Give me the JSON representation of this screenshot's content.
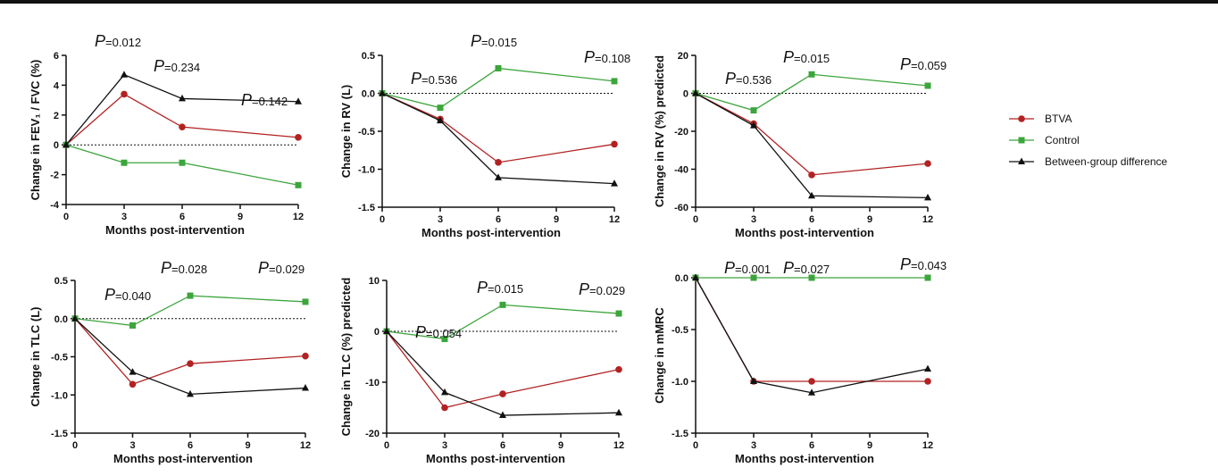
{
  "colors": {
    "BTVA": "#b22222",
    "Control": "#3ca53c",
    "Between-group difference": "#111111"
  },
  "legend": [
    {
      "name": "BTVA",
      "marker": "circle"
    },
    {
      "name": "Control",
      "marker": "square"
    },
    {
      "name": "Between-group difference",
      "marker": "triangle"
    }
  ],
  "chart_data": [
    {
      "type": "line",
      "ylabel": "Change in FEV₁ / FVC (%)",
      "xlabel": "Months post-intervention",
      "x": [
        0,
        3,
        6,
        12
      ],
      "xticks": [
        0,
        3,
        6,
        9,
        12
      ],
      "ylim": [
        -4,
        6
      ],
      "yticks": [
        -4,
        -2,
        0,
        2,
        4,
        6
      ],
      "series": [
        {
          "name": "BTVA",
          "values": [
            0,
            3.4,
            1.2,
            0.5
          ]
        },
        {
          "name": "Control",
          "values": [
            0,
            -1.2,
            -1.2,
            -2.7
          ]
        },
        {
          "name": "Between-group difference",
          "values": [
            0,
            4.7,
            3.1,
            2.9
          ]
        }
      ],
      "pvalues": [
        {
          "label": "P",
          "value": "=0.012"
        },
        {
          "label": "P",
          "value": "=0.234"
        },
        {
          "label": "P",
          "value": "=0.142"
        }
      ]
    },
    {
      "type": "line",
      "ylabel": "Change in RV (L)",
      "xlabel": "Months post-intervention",
      "x": [
        0,
        3,
        6,
        12
      ],
      "xticks": [
        0,
        3,
        6,
        9,
        12
      ],
      "ylim": [
        -1.5,
        0.5
      ],
      "yticks": [
        -1.5,
        -1.0,
        -0.5,
        0.0,
        0.5
      ],
      "series": [
        {
          "name": "BTVA",
          "values": [
            0,
            -0.34,
            -0.91,
            -0.67
          ]
        },
        {
          "name": "Control",
          "values": [
            0,
            -0.19,
            0.33,
            0.16
          ]
        },
        {
          "name": "Between-group difference",
          "values": [
            0,
            -0.36,
            -1.11,
            -1.19
          ]
        }
      ],
      "pvalues": [
        {
          "label": "P",
          "value": "=0.536"
        },
        {
          "label": "P",
          "value": "=0.015"
        },
        {
          "label": "P",
          "value": "=0.108"
        }
      ]
    },
    {
      "type": "line",
      "ylabel": "Change in RV (%) predicted",
      "xlabel": "Months post-intervention",
      "x": [
        0,
        3,
        6,
        12
      ],
      "xticks": [
        0,
        3,
        6,
        9,
        12
      ],
      "ylim": [
        -60,
        20
      ],
      "yticks": [
        -60,
        -40,
        -20,
        0,
        20
      ],
      "series": [
        {
          "name": "BTVA",
          "values": [
            0,
            -16,
            -43,
            -37
          ]
        },
        {
          "name": "Control",
          "values": [
            0,
            -9,
            10,
            4
          ]
        },
        {
          "name": "Between-group difference",
          "values": [
            0,
            -17,
            -54,
            -55
          ]
        }
      ],
      "pvalues": [
        {
          "label": "P",
          "value": "=0.536"
        },
        {
          "label": "P",
          "value": "=0.015"
        },
        {
          "label": "P",
          "value": "=0.059"
        }
      ]
    },
    {
      "type": "line",
      "ylabel": "Change in TLC (L)",
      "xlabel": "Months post-intervention",
      "x": [
        0,
        3,
        6,
        12
      ],
      "xticks": [
        0,
        3,
        6,
        9,
        12
      ],
      "ylim": [
        -1.5,
        0.5
      ],
      "yticks": [
        -1.5,
        -1.0,
        -0.5,
        0.0,
        0.5
      ],
      "series": [
        {
          "name": "BTVA",
          "values": [
            0,
            -0.86,
            -0.59,
            -0.49
          ]
        },
        {
          "name": "Control",
          "values": [
            0,
            -0.09,
            0.3,
            0.22
          ]
        },
        {
          "name": "Between-group difference",
          "values": [
            0,
            -0.7,
            -0.99,
            -0.91
          ]
        }
      ],
      "pvalues": [
        {
          "label": "P",
          "value": "=0.040"
        },
        {
          "label": "P",
          "value": "=0.028"
        },
        {
          "label": "P",
          "value": "=0.029"
        }
      ]
    },
    {
      "type": "line",
      "ylabel": "Change in TLC (%) predicted",
      "xlabel": "Months post-intervention",
      "x": [
        0,
        3,
        6,
        12
      ],
      "xticks": [
        0,
        3,
        6,
        9,
        12
      ],
      "ylim": [
        -20,
        10
      ],
      "yticks": [
        -20,
        -10,
        0,
        10
      ],
      "series": [
        {
          "name": "BTVA",
          "values": [
            0,
            -15,
            -12.3,
            -7.5
          ]
        },
        {
          "name": "Control",
          "values": [
            0,
            -1.5,
            5.2,
            3.5
          ]
        },
        {
          "name": "Between-group difference",
          "values": [
            0,
            -12,
            -16.5,
            -16
          ]
        }
      ],
      "pvalues": [
        {
          "label": "P",
          "value": "=0.054"
        },
        {
          "label": "P",
          "value": "=0.015"
        },
        {
          "label": "P",
          "value": "=0.029"
        }
      ]
    },
    {
      "type": "line",
      "ylabel": "Change in mMRC",
      "xlabel": "Months post-intervention",
      "x": [
        0,
        3,
        6,
        12
      ],
      "xticks": [
        0,
        3,
        6,
        9,
        12
      ],
      "ylim": [
        -1.5,
        0
      ],
      "yticks": [
        -1.5,
        -1.0,
        -0.5,
        0.0
      ],
      "series": [
        {
          "name": "BTVA",
          "values": [
            0,
            -1.0,
            -1.0,
            -1.0
          ]
        },
        {
          "name": "Control",
          "values": [
            0,
            0,
            0,
            0
          ]
        },
        {
          "name": "Between-group difference",
          "values": [
            0,
            -1.0,
            -1.11,
            -0.88
          ]
        }
      ],
      "pvalues": [
        {
          "label": "P",
          "value": "=0.001"
        },
        {
          "label": "P",
          "value": "=0.027"
        },
        {
          "label": "P",
          "value": "=0.043"
        }
      ]
    }
  ]
}
